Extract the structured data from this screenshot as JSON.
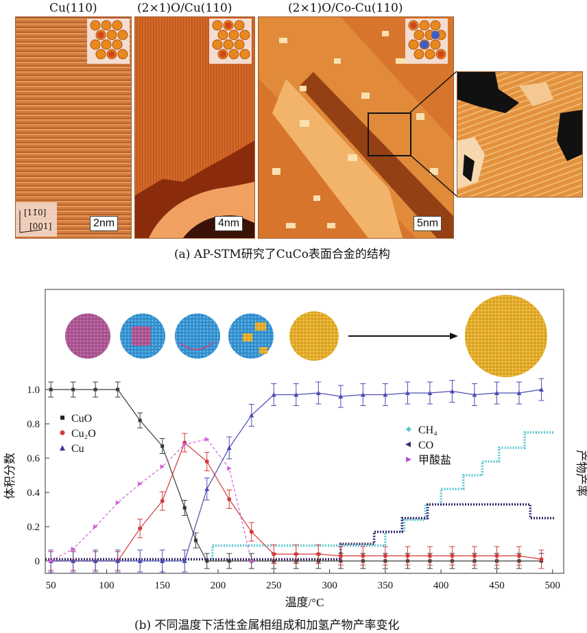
{
  "panel_a": {
    "titles": [
      "Cu(110)",
      "(2×1)O/Cu(110)",
      "(2×1)O/Co-Cu(110)"
    ],
    "scale_bars": [
      "2nm",
      "4nm",
      "5nm"
    ],
    "direction_labels": [
      "[11̄0]",
      "[001]"
    ],
    "caption": "(a) AP-STM研究了CuCo表面合金的结构"
  },
  "panel_b": {
    "caption": "(b) 不同温度下活性金属相组成和加氢产物产率变化"
  },
  "chart_data": {
    "type": "line",
    "xlabel": "温度/°C",
    "ylabel_left": "体积分数",
    "ylabel_right": "产物产率",
    "xlim": [
      45,
      510
    ],
    "ylim": [
      -0.04,
      1.2
    ],
    "x_ticks": [
      50,
      100,
      150,
      200,
      250,
      300,
      350,
      400,
      450,
      500
    ],
    "y_ticks": [
      0,
      0.2,
      0.4,
      0.6,
      0.8,
      1.0
    ],
    "y_tick_labels": [
      "0",
      "0.2",
      "0.4",
      "0.6",
      "0.8",
      "1.0"
    ],
    "legend_left": [
      {
        "name": "CuO",
        "color": "#222222",
        "marker": "square"
      },
      {
        "name": "Cu₂O",
        "color": "#d43a3a",
        "marker": "circle"
      },
      {
        "name": "Cu",
        "color": "#3a3aa8",
        "marker": "triangle"
      }
    ],
    "legend_right": [
      {
        "name": "CH₄",
        "color": "#5cc8d0",
        "marker": "diamond"
      },
      {
        "name": "CO",
        "color": "#3a2a6a",
        "marker": "triangle-left"
      },
      {
        "name": "甲酸盐",
        "color": "#b050d0",
        "marker": "triangle-right"
      }
    ],
    "series": [
      {
        "name": "CuO",
        "color": "#3a3a3a",
        "dash": "",
        "x": [
          50,
          70,
          90,
          110,
          130,
          150,
          170,
          180,
          190,
          210,
          230,
          250,
          270,
          290,
          310,
          330,
          350,
          370,
          390,
          410,
          430,
          450,
          470,
          490
        ],
        "y": [
          1.0,
          1.0,
          1.0,
          1.0,
          0.82,
          0.67,
          0.31,
          0.12,
          0.0,
          0.0,
          0.0,
          0.0,
          0.0,
          0.0,
          0.0,
          0.0,
          0.0,
          0.0,
          0.0,
          0.0,
          0.0,
          0.0,
          0.0,
          0.0
        ],
        "err": 0.02
      },
      {
        "name": "Cu₂O",
        "color": "#d43a3a",
        "dash": "",
        "x": [
          50,
          70,
          90,
          110,
          130,
          150,
          170,
          190,
          210,
          230,
          250,
          270,
          290,
          310,
          330,
          350,
          370,
          390,
          410,
          430,
          450,
          470,
          490
        ],
        "y": [
          0.0,
          0.0,
          0.0,
          0.0,
          0.19,
          0.35,
          0.69,
          0.58,
          0.36,
          0.17,
          0.04,
          0.04,
          0.04,
          0.03,
          0.03,
          0.03,
          0.03,
          0.03,
          0.03,
          0.03,
          0.03,
          0.03,
          0.01
        ],
        "err": 0.03
      },
      {
        "name": "Cu",
        "color": "#4a4ab0",
        "dash": "",
        "x": [
          50,
          70,
          90,
          110,
          130,
          150,
          170,
          190,
          210,
          230,
          250,
          270,
          290,
          310,
          330,
          350,
          370,
          390,
          410,
          430,
          450,
          470,
          490
        ],
        "y": [
          0.0,
          0.0,
          0.0,
          0.0,
          0.0,
          0.0,
          0.0,
          0.42,
          0.66,
          0.85,
          0.97,
          0.97,
          0.98,
          0.96,
          0.97,
          0.97,
          0.98,
          0.98,
          0.99,
          0.97,
          0.98,
          0.98,
          1.0
        ],
        "err": 0.04
      },
      {
        "name": "甲酸盐",
        "color": "#d060d8",
        "dash": "4,3",
        "x": [
          50,
          70,
          90,
          110,
          130,
          150,
          170,
          190,
          210,
          230
        ],
        "y": [
          0.0,
          0.07,
          0.2,
          0.34,
          0.45,
          0.55,
          0.68,
          0.71,
          0.54,
          0.0
        ],
        "err": 0
      }
    ],
    "step_series": [
      {
        "name": "CH₄",
        "color": "#5cc8d0",
        "steps": [
          [
            45,
            195,
            0.01
          ],
          [
            195,
            350,
            0.09
          ],
          [
            350,
            367,
            0.17
          ],
          [
            367,
            386,
            0.24
          ],
          [
            386,
            400,
            0.33
          ],
          [
            400,
            420,
            0.42
          ],
          [
            420,
            437,
            0.5
          ],
          [
            437,
            452,
            0.58
          ],
          [
            452,
            475,
            0.66
          ],
          [
            475,
            502,
            0.75
          ]
        ]
      },
      {
        "name": "CO",
        "color": "#3a2a6a",
        "steps": [
          [
            45,
            310,
            0.01
          ],
          [
            310,
            340,
            0.1
          ],
          [
            340,
            365,
            0.17
          ],
          [
            365,
            388,
            0.25
          ],
          [
            388,
            480,
            0.33
          ],
          [
            480,
            502,
            0.25
          ]
        ]
      }
    ]
  }
}
